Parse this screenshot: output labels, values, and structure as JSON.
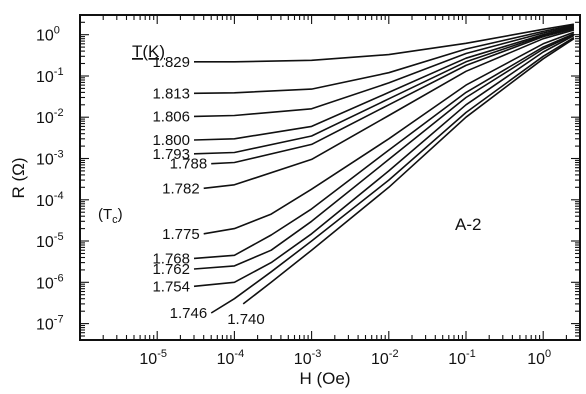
{
  "chart_data": {
    "type": "line",
    "title": "",
    "xlabel": "H (Oe)",
    "ylabel": "R (Ω)",
    "xscale": "log",
    "yscale": "log",
    "xlim": [
      1e-06,
      3
    ],
    "ylim": [
      4e-08,
      3
    ],
    "x_tick_labels": [
      {
        "base": "10",
        "exp": "-5",
        "value": 1e-05
      },
      {
        "base": "10",
        "exp": "-4",
        "value": 0.0001
      },
      {
        "base": "10",
        "exp": "-3",
        "value": 0.001
      },
      {
        "base": "10",
        "exp": "-2",
        "value": 0.01
      },
      {
        "base": "10",
        "exp": "-1",
        "value": 0.1
      },
      {
        "base": "10",
        "exp": "0",
        "value": 1
      }
    ],
    "y_tick_labels": [
      {
        "base": "10",
        "exp": "0",
        "value": 1
      },
      {
        "base": "10",
        "exp": "-1",
        "value": 0.1
      },
      {
        "base": "10",
        "exp": "-2",
        "value": 0.01
      },
      {
        "base": "10",
        "exp": "-3",
        "value": 0.001
      },
      {
        "base": "10",
        "exp": "-4",
        "value": 0.0001
      },
      {
        "base": "10",
        "exp": "-5",
        "value": 1e-05
      },
      {
        "base": "10",
        "exp": "-6",
        "value": 1e-06
      },
      {
        "base": "10",
        "exp": "-7",
        "value": 1e-07
      }
    ],
    "grid": false,
    "legend_header": "T(K)",
    "tc_marker": "(T",
    "tc_marker_sub": "c",
    "tc_marker_close": ")",
    "sample_label": "A-2",
    "series": [
      {
        "name": "1.829",
        "points": [
          [
            3e-05,
            0.22
          ],
          [
            0.0001,
            0.22
          ],
          [
            0.001,
            0.24
          ],
          [
            0.01,
            0.33
          ],
          [
            0.1,
            0.62
          ],
          [
            1,
            1.35
          ],
          [
            2.5,
            1.8
          ]
        ]
      },
      {
        "name": "1.813",
        "points": [
          [
            3e-05,
            0.038
          ],
          [
            0.0001,
            0.039
          ],
          [
            0.001,
            0.048
          ],
          [
            0.01,
            0.12
          ],
          [
            0.1,
            0.45
          ],
          [
            1,
            1.2
          ],
          [
            2.5,
            1.7
          ]
        ]
      },
      {
        "name": "1.806",
        "points": [
          [
            3e-05,
            0.0105
          ],
          [
            0.0001,
            0.011
          ],
          [
            0.001,
            0.016
          ],
          [
            0.01,
            0.068
          ],
          [
            0.1,
            0.35
          ],
          [
            1,
            1.1
          ],
          [
            2.5,
            1.6
          ]
        ]
      },
      {
        "name": "1.800",
        "points": [
          [
            3e-05,
            0.0028
          ],
          [
            0.0001,
            0.003
          ],
          [
            0.001,
            0.006
          ],
          [
            0.01,
            0.04
          ],
          [
            0.1,
            0.27
          ],
          [
            1,
            1.0
          ],
          [
            2.5,
            1.5
          ]
        ]
      },
      {
        "name": "1.793",
        "points": [
          [
            3e-05,
            0.0013
          ],
          [
            0.0001,
            0.0014
          ],
          [
            0.001,
            0.0035
          ],
          [
            0.01,
            0.028
          ],
          [
            0.1,
            0.22
          ],
          [
            1,
            0.95
          ],
          [
            2.5,
            1.45
          ]
        ]
      },
      {
        "name": "1.788",
        "points": [
          [
            5e-05,
            0.00075
          ],
          [
            0.0001,
            0.0008
          ],
          [
            0.001,
            0.0022
          ],
          [
            0.01,
            0.02
          ],
          [
            0.1,
            0.18
          ],
          [
            1,
            0.9
          ],
          [
            2.5,
            1.4
          ]
        ]
      },
      {
        "name": "1.782",
        "points": [
          [
            4e-05,
            0.00019
          ],
          [
            0.0001,
            0.00023
          ],
          [
            0.001,
            0.00095
          ],
          [
            0.01,
            0.011
          ],
          [
            0.1,
            0.13
          ],
          [
            1,
            0.8
          ],
          [
            2.5,
            1.3
          ]
        ]
      },
      {
        "name": "1.775",
        "points": [
          [
            4e-05,
            1.5e-05
          ],
          [
            0.0001,
            2e-05
          ],
          [
            0.0003,
            4.5e-05
          ],
          [
            0.001,
            0.00018
          ],
          [
            0.01,
            0.003
          ],
          [
            0.1,
            0.06
          ],
          [
            1,
            0.6
          ],
          [
            2.5,
            1.15
          ]
        ]
      },
      {
        "name": "1.768",
        "points": [
          [
            3e-05,
            3.8e-06
          ],
          [
            0.0001,
            4.5e-06
          ],
          [
            0.0003,
            1.4e-05
          ],
          [
            0.001,
            6e-05
          ],
          [
            0.01,
            0.0016
          ],
          [
            0.1,
            0.04
          ],
          [
            1,
            0.5
          ],
          [
            2.5,
            1.05
          ]
        ]
      },
      {
        "name": "1.762",
        "points": [
          [
            3e-05,
            2.1e-06
          ],
          [
            0.0001,
            2.5e-06
          ],
          [
            0.0003,
            6e-06
          ],
          [
            0.001,
            3e-05
          ],
          [
            0.01,
            0.00095
          ],
          [
            0.1,
            0.03
          ],
          [
            1,
            0.45
          ],
          [
            2.5,
            1.0
          ]
        ]
      },
      {
        "name": "1.754",
        "points": [
          [
            3e-05,
            8e-07
          ],
          [
            0.0001,
            1e-06
          ],
          [
            0.0003,
            3e-06
          ],
          [
            0.001,
            1.5e-05
          ],
          [
            0.01,
            0.0005
          ],
          [
            0.1,
            0.02
          ],
          [
            1,
            0.38
          ],
          [
            2.5,
            0.95
          ]
        ]
      },
      {
        "name": "1.746",
        "points": [
          [
            5e-05,
            1.8e-07
          ],
          [
            0.0001,
            4e-07
          ],
          [
            0.0003,
            1.8e-06
          ],
          [
            0.001,
            1e-05
          ],
          [
            0.01,
            0.0003
          ],
          [
            0.1,
            0.013
          ],
          [
            1,
            0.3
          ],
          [
            2.5,
            0.85
          ]
        ]
      },
      {
        "name": "1.740",
        "points": [
          [
            0.00013,
            3e-07
          ],
          [
            0.0003,
            1e-06
          ],
          [
            0.001,
            6e-06
          ],
          [
            0.01,
            0.0002
          ],
          [
            0.1,
            0.01
          ],
          [
            1,
            0.26
          ],
          [
            2.5,
            0.8
          ]
        ]
      }
    ]
  }
}
